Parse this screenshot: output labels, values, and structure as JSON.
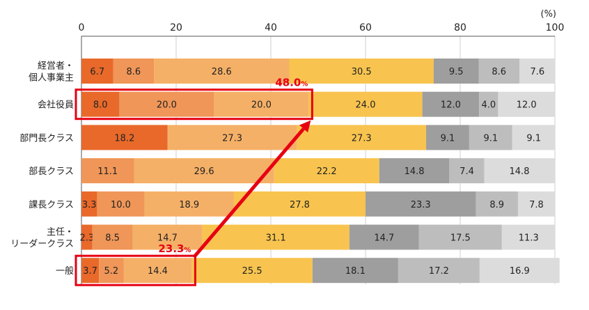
{
  "chart_data": {
    "type": "bar",
    "orientation": "horizontal",
    "stacked": true,
    "unit_label": "(%)",
    "xlim": [
      0,
      100
    ],
    "xticks": [
      0,
      20,
      40,
      60,
      80,
      100
    ],
    "categories": [
      [
        "経営者・",
        "個人事業主"
      ],
      [
        "会社役員"
      ],
      [
        "部門長クラス"
      ],
      [
        "部長クラス"
      ],
      [
        "課長クラス"
      ],
      [
        "主任・",
        "リーダークラス"
      ],
      [
        "一般"
      ]
    ],
    "series": [
      {
        "name": "segment-1",
        "color": "#e8692a",
        "values": [
          6.7,
          8.0,
          18.2,
          0,
          3.3,
          2.3,
          3.7
        ]
      },
      {
        "name": "segment-2",
        "color": "#ef9658",
        "values": [
          8.6,
          20.0,
          0,
          11.1,
          10.0,
          8.5,
          5.2
        ]
      },
      {
        "name": "segment-3",
        "color": "#f5b067",
        "values": [
          28.6,
          20.0,
          27.3,
          29.6,
          18.9,
          14.7,
          14.4
        ]
      },
      {
        "name": "segment-4",
        "color": "#f8c44f",
        "values": [
          30.5,
          24.0,
          27.3,
          22.2,
          27.8,
          31.1,
          25.5
        ]
      },
      {
        "name": "segment-5",
        "color": "#9e9e9e",
        "values": [
          9.5,
          12.0,
          9.1,
          14.8,
          23.3,
          14.7,
          18.1
        ]
      },
      {
        "name": "segment-6",
        "color": "#bdbdbd",
        "values": [
          8.6,
          4.0,
          9.1,
          7.4,
          8.9,
          17.5,
          17.2
        ]
      },
      {
        "name": "segment-7",
        "color": "#dcdcdc",
        "values": [
          7.6,
          12.0,
          9.1,
          14.8,
          7.8,
          11.3,
          16.9
        ]
      }
    ],
    "annotations": [
      {
        "label": "48.0",
        "unit": "%",
        "row": 1,
        "segments": 3,
        "color": "#e60012"
      },
      {
        "label": "23.3",
        "unit": "%",
        "row": 6,
        "segments": 3,
        "color": "#e60012"
      }
    ]
  }
}
